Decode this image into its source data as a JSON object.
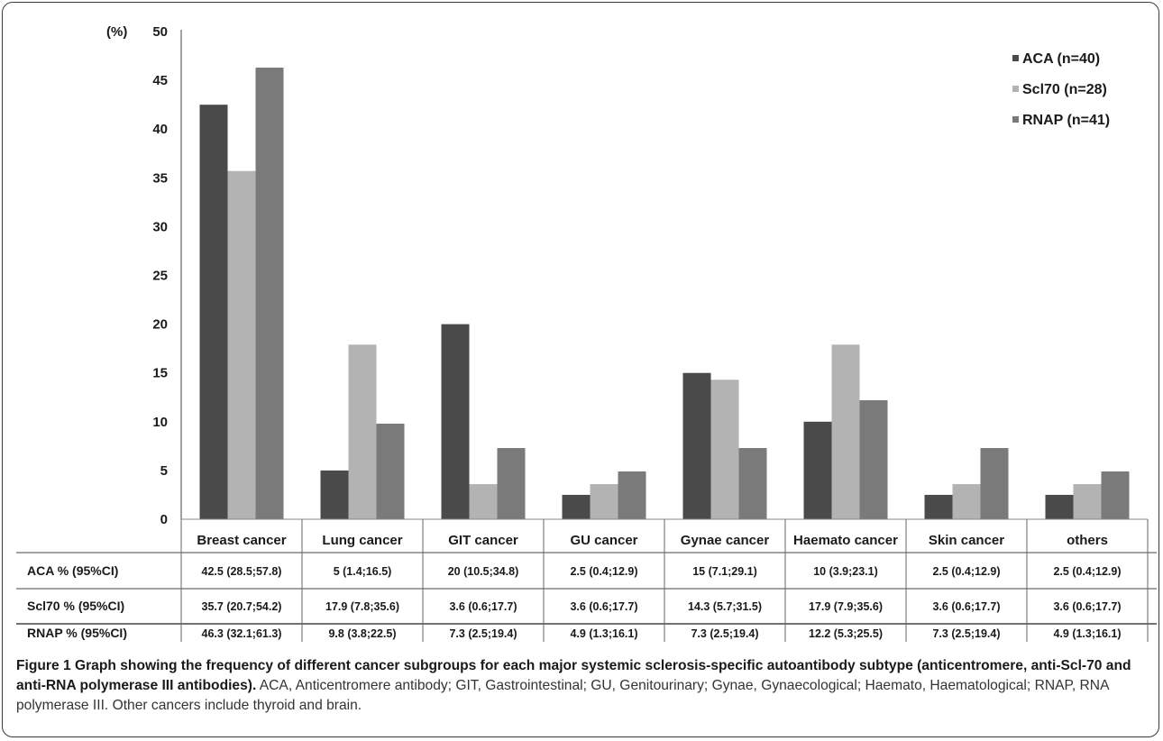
{
  "chart_data": {
    "type": "bar",
    "ylabel": "(%)",
    "ylim": [
      0,
      50
    ],
    "yticks": [
      0,
      5,
      10,
      15,
      20,
      25,
      30,
      35,
      40,
      45,
      50
    ],
    "categories": [
      "Breast cancer",
      "Lung cancer",
      "GIT cancer",
      "GU cancer",
      "Gynae cancer",
      "Haemato cancer",
      "Skin cancer",
      "others"
    ],
    "series": [
      {
        "name": "ACA (n=40)",
        "color": "#4a4a4a",
        "values": [
          42.5,
          5,
          20,
          2.5,
          15,
          10,
          2.5,
          2.5
        ]
      },
      {
        "name": "Scl70 (n=28)",
        "color": "#b3b3b3",
        "values": [
          35.7,
          17.9,
          3.6,
          3.6,
          14.3,
          17.9,
          3.6,
          3.6
        ]
      },
      {
        "name": "RNAP (n=41)",
        "color": "#7a7a7a",
        "values": [
          46.3,
          9.8,
          7.3,
          4.9,
          7.3,
          12.2,
          7.3,
          4.9
        ]
      }
    ],
    "legend_position": "top-right",
    "grid": false,
    "table": {
      "rows": [
        {
          "label": "ACA % (95%CI)",
          "cells": [
            "42.5 (28.5;57.8)",
            "5 (1.4;16.5)",
            "20 (10.5;34.8)",
            "2.5 (0.4;12.9)",
            "15 (7.1;29.1)",
            "10 (3.9;23.1)",
            "2.5 (0.4;12.9)",
            "2.5 (0.4;12.9)"
          ]
        },
        {
          "label": "Scl70 % (95%CI)",
          "cells": [
            "35.7 (20.7;54.2)",
            "17.9 (7.8;35.6)",
            "3.6 (0.6;17.7)",
            "3.6 (0.6;17.7)",
            "14.3 (5.7;31.5)",
            "17.9 (7.9;35.6)",
            "3.6 (0.6;17.7)",
            "3.6 (0.6;17.7)"
          ]
        },
        {
          "label": "RNAP % (95%CI)",
          "cells": [
            "46.3 (32.1;61.3)",
            "9.8 (3.8;22.5)",
            "7.3 (2.5;19.4)",
            "4.9 (1.3;16.1)",
            "7.3 (2.5;19.4)",
            "12.2 (5.3;25.5)",
            "7.3 (2.5;19.4)",
            "4.9 (1.3;16.1)"
          ]
        }
      ]
    }
  },
  "caption": {
    "title": "Figure 1 Graph showing the frequency of different cancer subgroups for each major systemic sclerosis-specific autoantibody subtype (anticentromere, anti-Scl-70 and anti-RNA polymerase III antibodies).",
    "body": " ACA, Anticentromere antibody; GIT, Gastrointestinal; GU, Genitourinary; Gynae, Gynaecological; Haemato, Haematological; RNAP, RNA polymerase III. Other cancers include thyroid and brain."
  }
}
